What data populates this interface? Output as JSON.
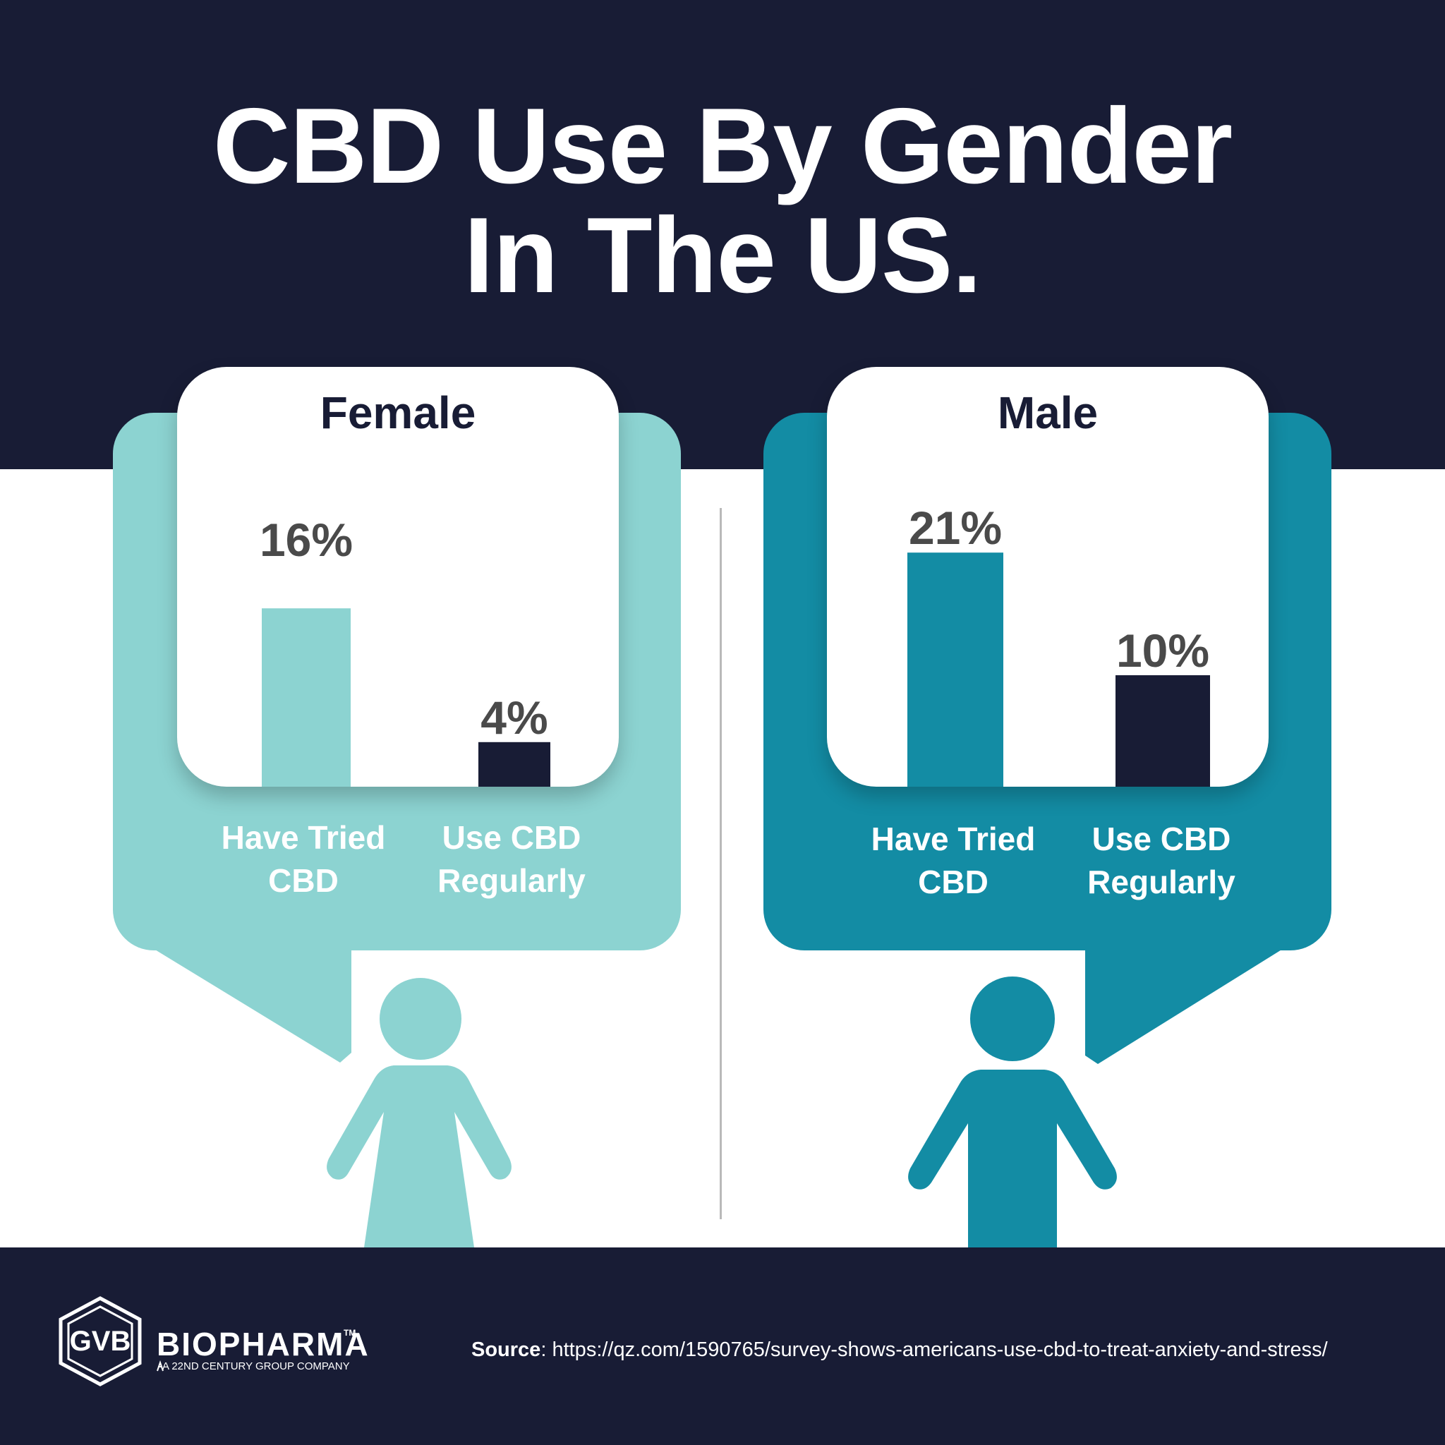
{
  "title": {
    "line1": "CBD Use By Gender",
    "line2": "In The US."
  },
  "colors": {
    "navy": "#181c35",
    "female_teal": "#8cd3d1",
    "male_teal": "#138ca4",
    "value_text": "#4a4a4a"
  },
  "chart_data": [
    {
      "type": "bar",
      "title": "Female",
      "categories": [
        "Have Tried CBD",
        "Use CBD Regularly"
      ],
      "values": [
        16,
        4
      ],
      "value_labels": [
        "16%",
        "4%"
      ],
      "bar_colors": [
        "#8cd3d1",
        "#181c35"
      ],
      "unit": "%"
    },
    {
      "type": "bar",
      "title": "Male",
      "categories": [
        "Have Tried CBD",
        "Use CBD Regularly"
      ],
      "values": [
        21,
        10
      ],
      "value_labels": [
        "21%",
        "10%"
      ],
      "bar_colors": [
        "#138ca4",
        "#181c35"
      ],
      "unit": "%"
    }
  ],
  "labels": {
    "have_tried": [
      "Have Tried",
      "CBD"
    ],
    "use_regularly": [
      "Use CBD",
      "Regularly"
    ]
  },
  "icons": {
    "female": "woman-icon",
    "male": "man-icon",
    "logo": "gvb-hexagon-logo"
  },
  "footer": {
    "logo_text": "GVB",
    "brand": "BIOPHARMA",
    "trademark": "TM",
    "brand_sub": "A 22ND CENTURY GROUP COMPANY",
    "source_label": "Source",
    "source_url": ": https://qz.com/1590765/survey-shows-americans-use-cbd-to-treat-anxiety-and-stress/"
  }
}
